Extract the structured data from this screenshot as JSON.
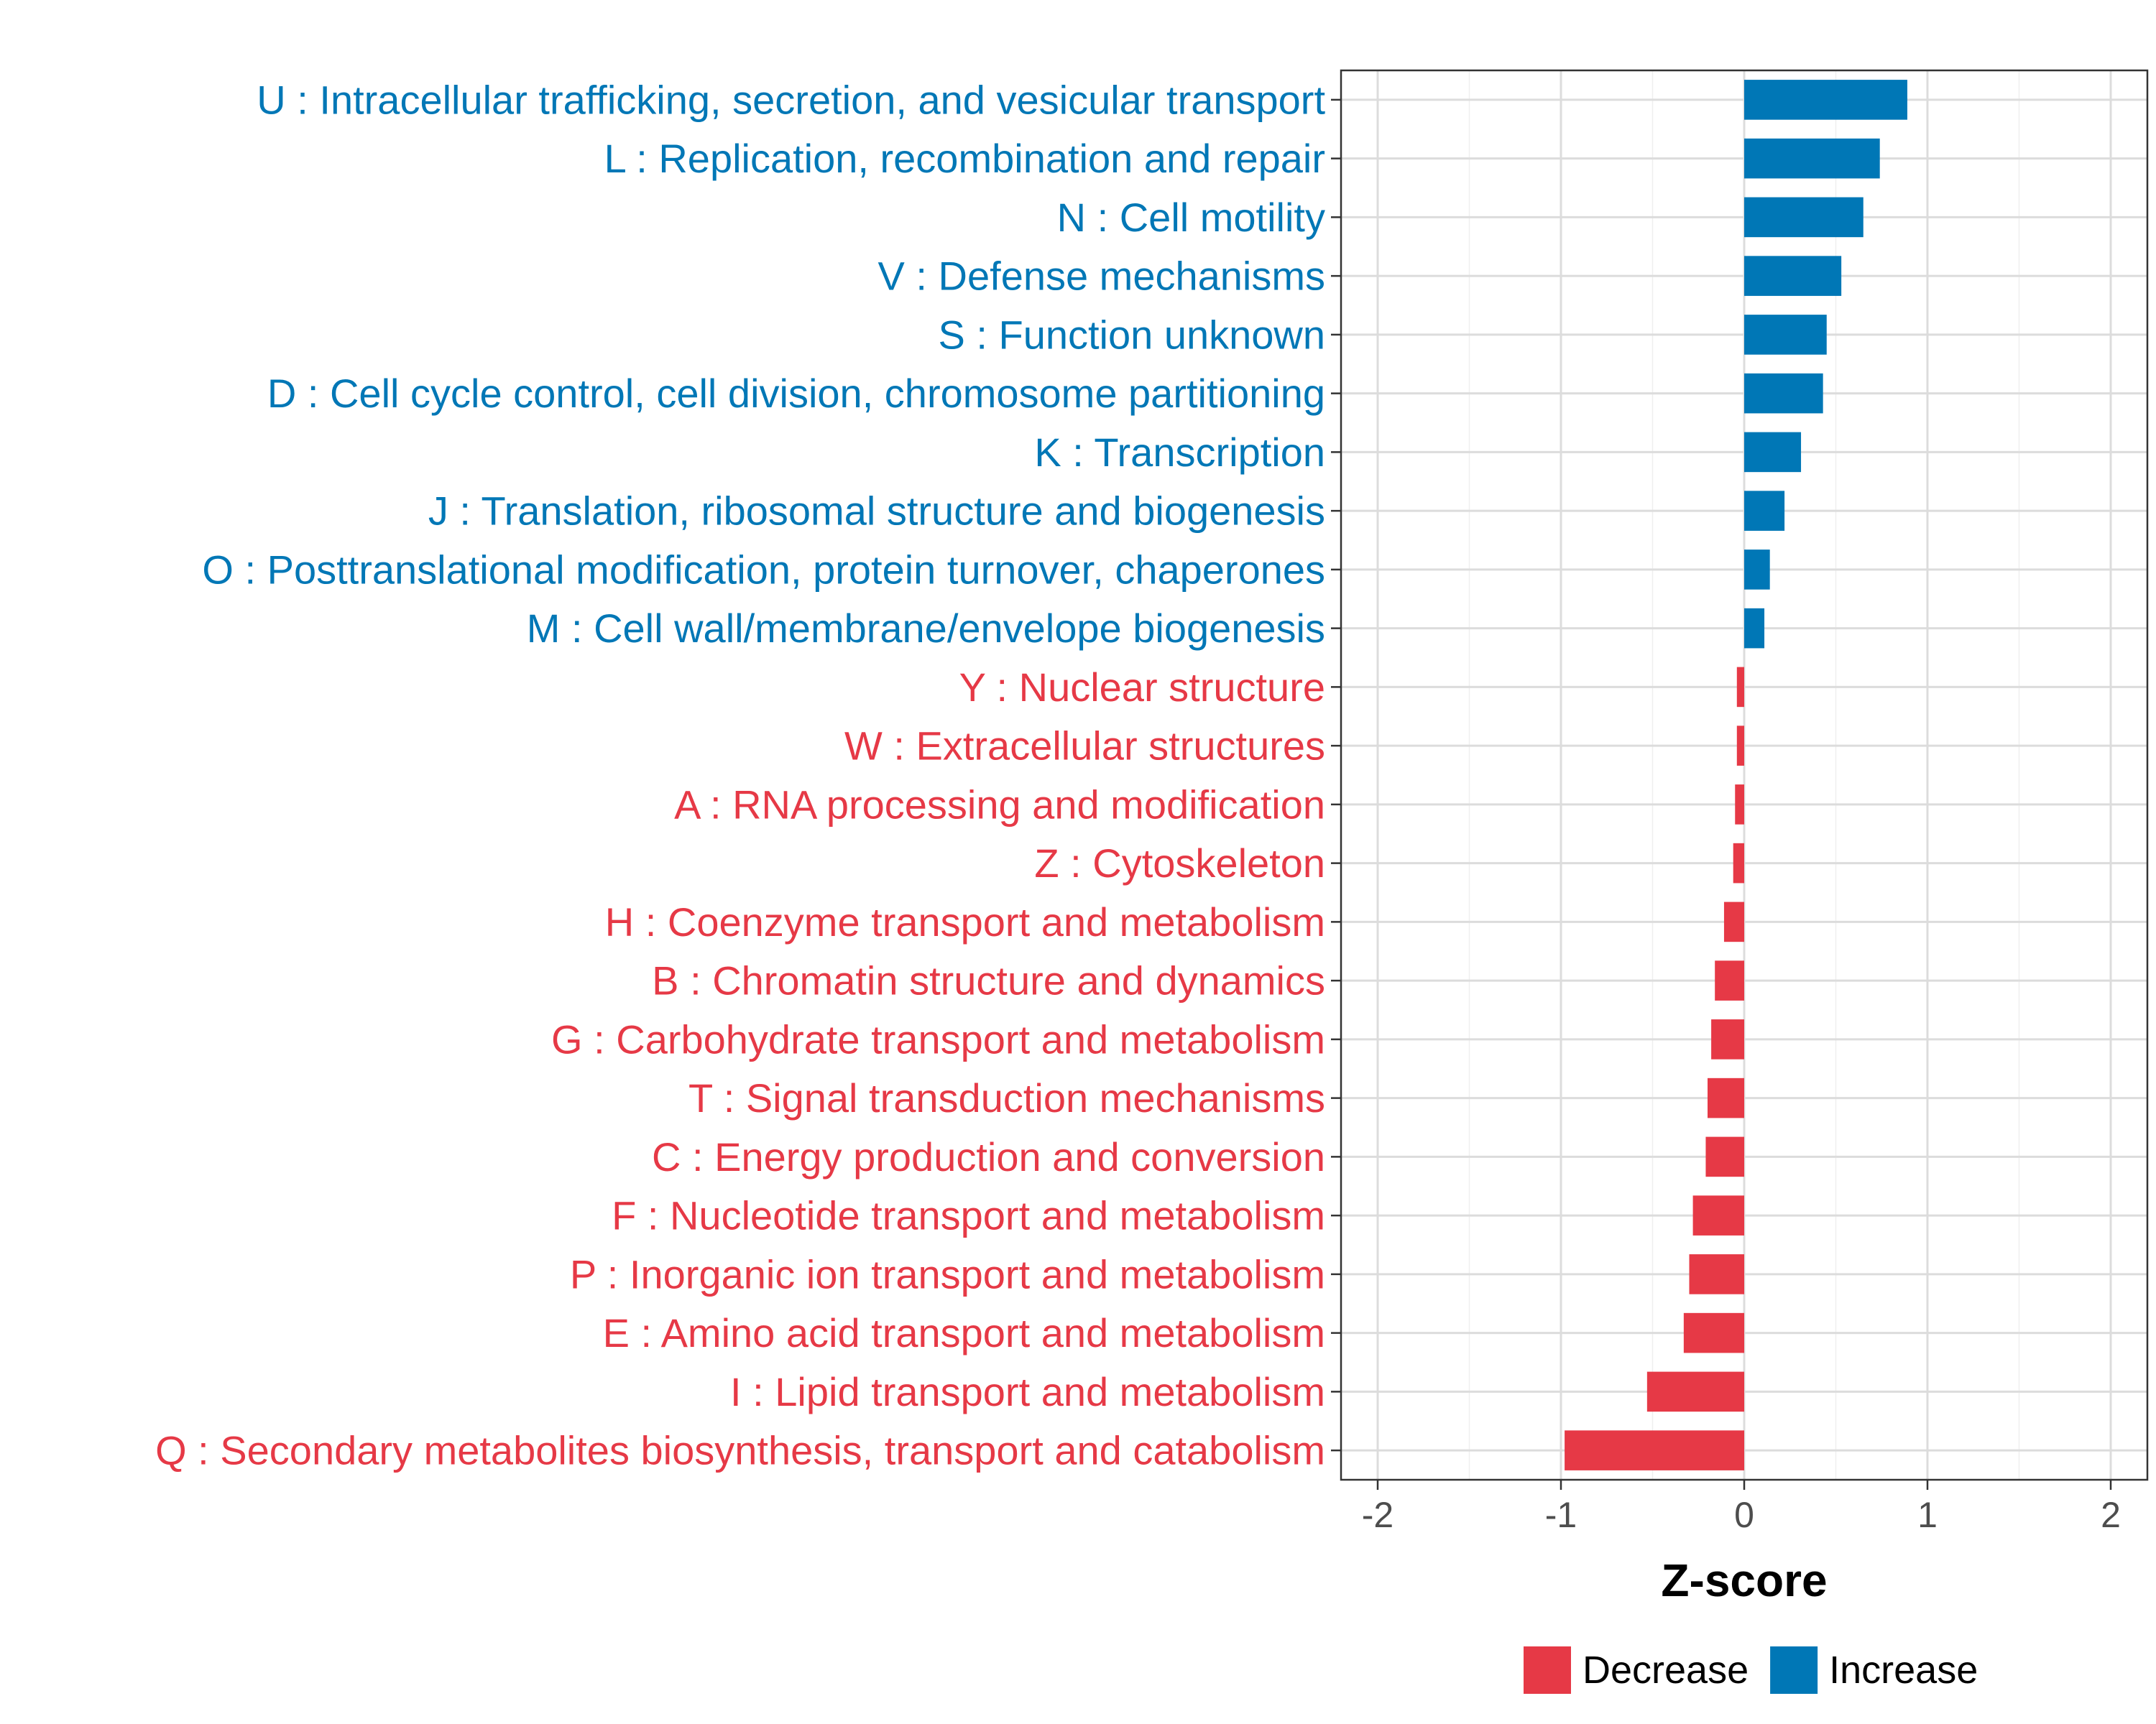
{
  "chart_data": {
    "type": "bar",
    "orientation": "horizontal",
    "title": "",
    "xlabel": "Z-score",
    "ylabel": "",
    "xlim": [
      -2.2,
      2.2
    ],
    "xticks": [
      -2,
      -1,
      0,
      1,
      2
    ],
    "xtick_labels": [
      "-2",
      "-1",
      "0",
      "1",
      "2"
    ],
    "grid": true,
    "legend_position": "bottom",
    "colors": {
      "Decrease": "#e63946",
      "Increase": "#0077b6"
    },
    "categories": [
      "U : Intracellular trafficking, secretion, and vesicular transport",
      "L : Replication, recombination and repair",
      "N : Cell motility",
      "V : Defense mechanisms",
      "S : Function unknown",
      "D : Cell cycle control, cell division, chromosome partitioning",
      "K : Transcription",
      "J : Translation, ribosomal structure and biogenesis",
      "O : Posttranslational modification, protein turnover, chaperones",
      "M : Cell wall/membrane/envelope biogenesis",
      "Y : Nuclear structure",
      "W : Extracellular structures",
      "A : RNA processing and modification",
      "Z : Cytoskeleton",
      "H : Coenzyme transport and metabolism",
      "B : Chromatin structure and dynamics",
      "G : Carbohydrate transport and metabolism",
      "T : Signal transduction mechanisms",
      "C : Energy production and conversion",
      "F : Nucleotide transport and metabolism",
      "P : Inorganic ion transport and metabolism",
      "E : Amino acid transport and metabolism",
      "I : Lipid transport and metabolism",
      "Q : Secondary metabolites biosynthesis, transport and catabolism"
    ],
    "values": [
      0.89,
      0.74,
      0.65,
      0.53,
      0.45,
      0.43,
      0.31,
      0.22,
      0.14,
      0.11,
      -0.04,
      -0.04,
      -0.05,
      -0.06,
      -0.11,
      -0.16,
      -0.18,
      -0.2,
      -0.21,
      -0.28,
      -0.3,
      -0.33,
      -0.53,
      -0.98
    ],
    "groups": [
      "Increase",
      "Increase",
      "Increase",
      "Increase",
      "Increase",
      "Increase",
      "Increase",
      "Increase",
      "Increase",
      "Increase",
      "Decrease",
      "Decrease",
      "Decrease",
      "Decrease",
      "Decrease",
      "Decrease",
      "Decrease",
      "Decrease",
      "Decrease",
      "Decrease",
      "Decrease",
      "Decrease",
      "Decrease",
      "Decrease"
    ],
    "legend": [
      {
        "name": "Decrease",
        "label": "Decrease"
      },
      {
        "name": "Increase",
        "label": "Increase"
      }
    ]
  }
}
